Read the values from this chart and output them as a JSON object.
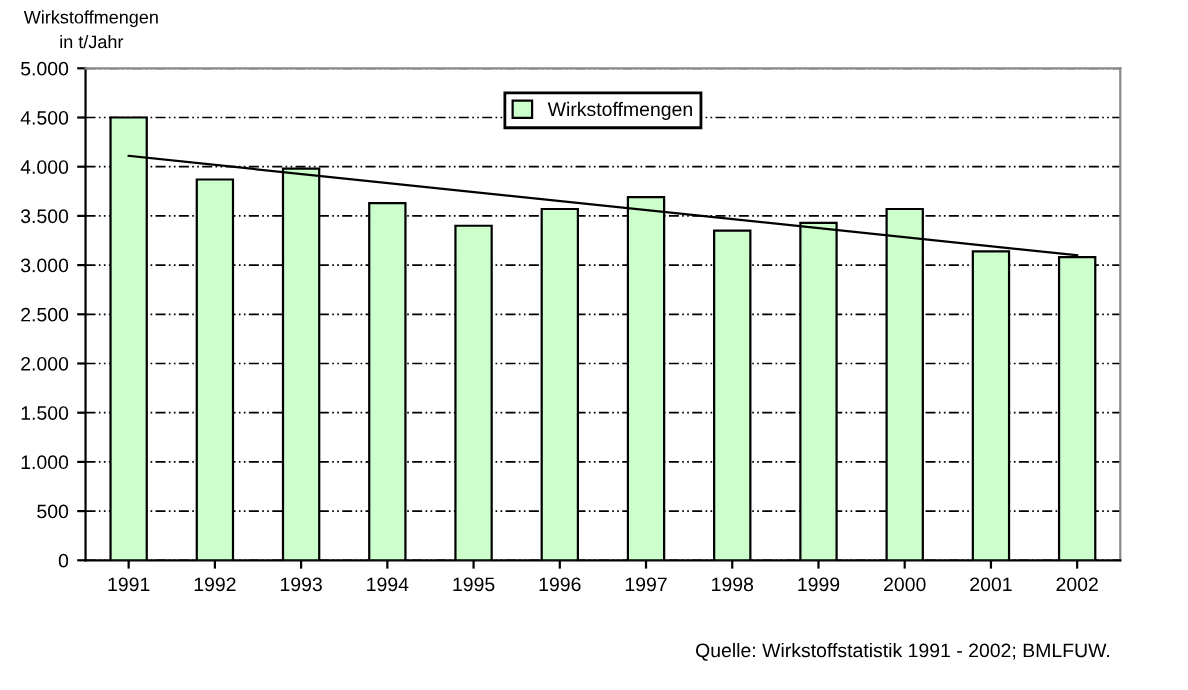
{
  "chart_data": {
    "type": "bar",
    "ylabel": "Wirkstoffmengen\nin t/Jahr",
    "categories": [
      "1991",
      "1992",
      "1993",
      "1994",
      "1995",
      "1996",
      "1997",
      "1998",
      "1999",
      "2000",
      "2001",
      "2002"
    ],
    "series": [
      {
        "name": "Wirkstoffmengen",
        "color": "#ccffcc",
        "values": [
          4500,
          3870,
          3980,
          3630,
          3400,
          3570,
          3690,
          3350,
          3430,
          3570,
          3140,
          3080
        ]
      },
      {
        "type": "line",
        "color": "#000000",
        "values": [
          4110,
          null,
          null,
          null,
          null,
          null,
          null,
          null,
          null,
          null,
          null,
          3100
        ]
      }
    ],
    "ylim": [
      0,
      5000
    ],
    "yticks": [
      {
        "value": 0,
        "label": "0"
      },
      {
        "value": 500,
        "label": "500"
      },
      {
        "value": 1000,
        "label": "1.000"
      },
      {
        "value": 1500,
        "label": "1.500"
      },
      {
        "value": 2000,
        "label": "2.000"
      },
      {
        "value": 2500,
        "label": "2.500"
      },
      {
        "value": 3000,
        "label": "3.000"
      },
      {
        "value": 3500,
        "label": "3.500"
      },
      {
        "value": 4000,
        "label": "4.000"
      },
      {
        "value": 4500,
        "label": "4.500"
      },
      {
        "value": 5000,
        "label": "5.000"
      }
    ],
    "grid": "y",
    "legend": "top",
    "annotations": [
      "Quelle: Wirkstoffstatistik 1991 - 2002; BMLFUW."
    ]
  }
}
